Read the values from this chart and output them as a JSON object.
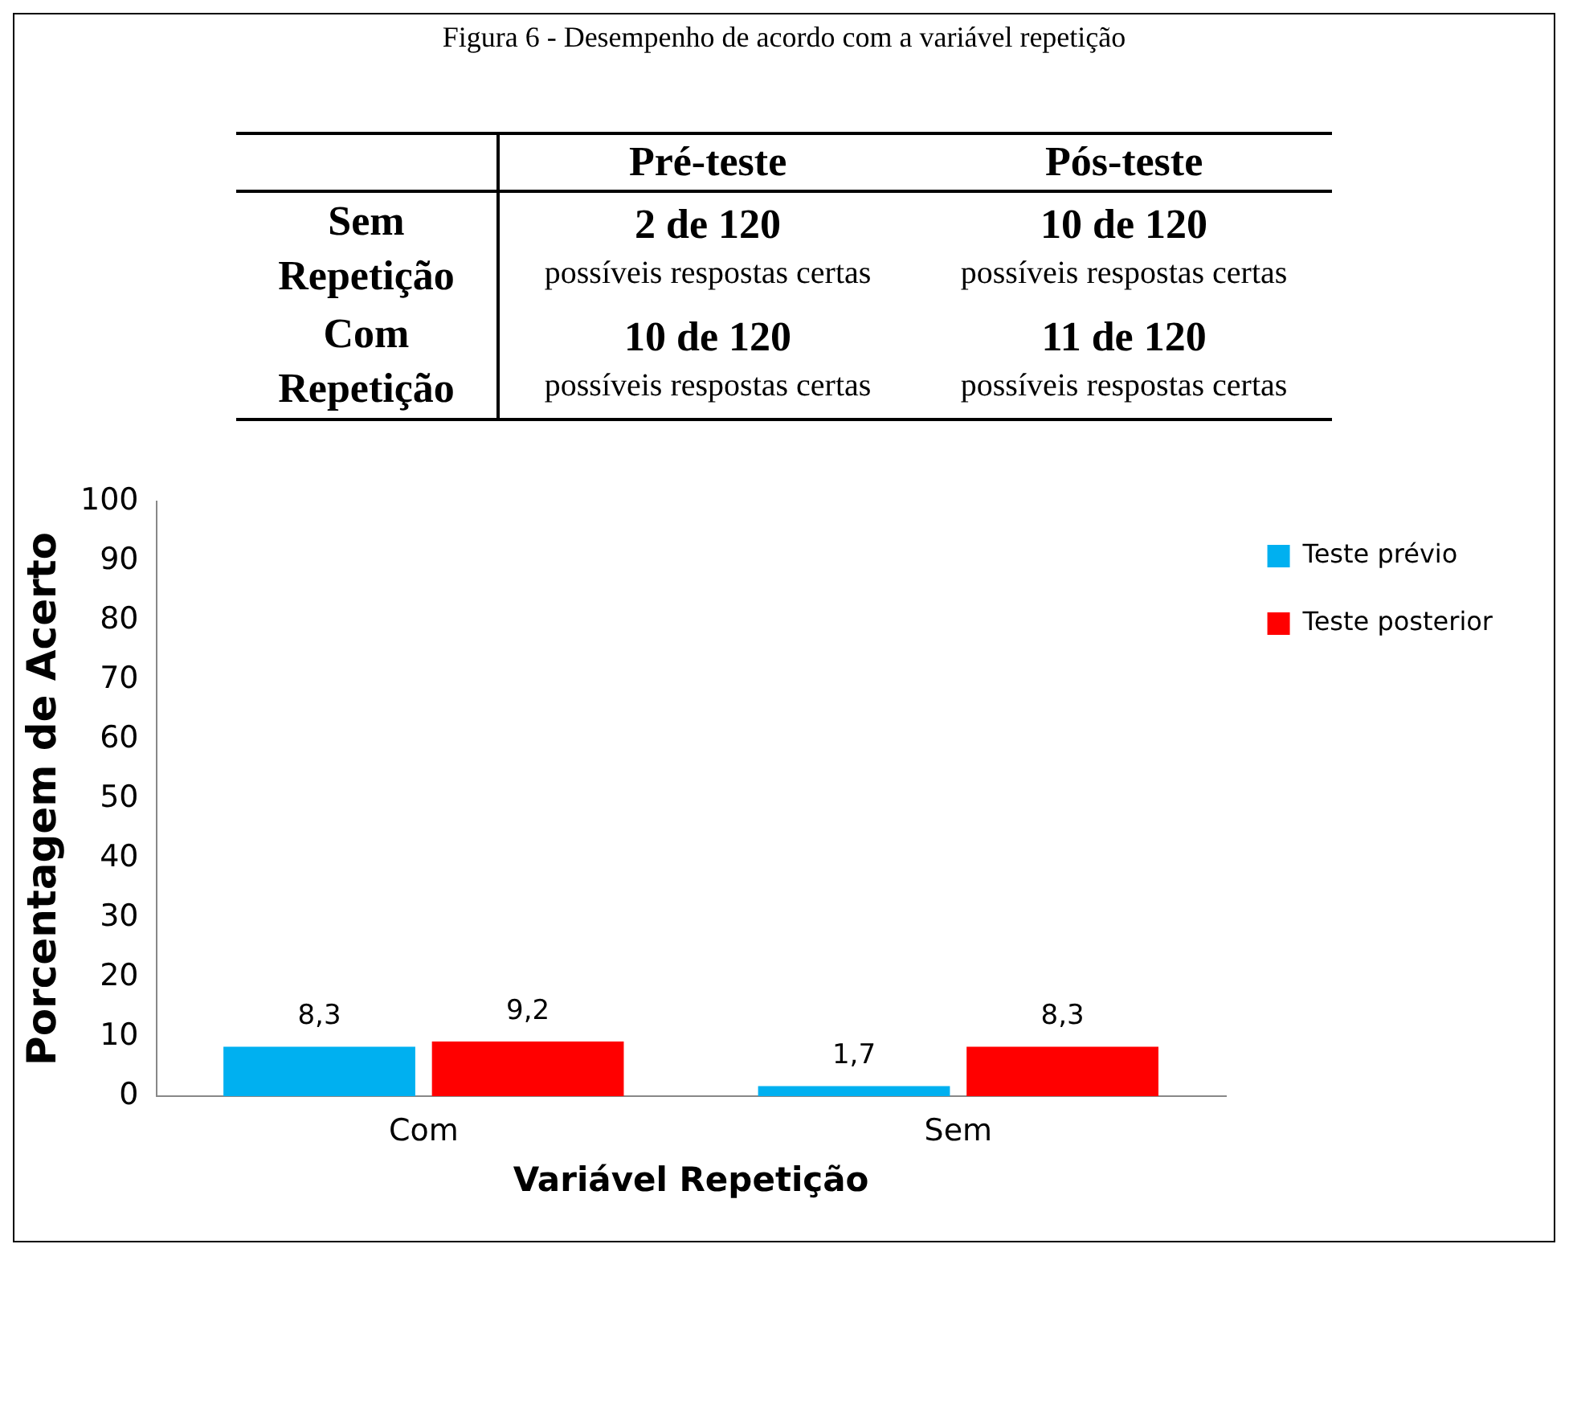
{
  "chart_data": [
    {
      "type": "other",
      "title": "Figura 6 - Desempenho de acordo com a variável repetição",
      "categories": [
        "Pré-teste",
        "Pós-teste"
      ],
      "y_categories": [
        "Sem Repetição",
        "Com Repetição"
      ],
      "cell_labels": [
        [
          "2 de 120\npossíveis respostas certas",
          "10 de 120\npossíveis respostas certas"
        ],
        [
          "10 de 120\npossíveis respostas certas",
          "11 de 120\npossíveis respostas certas"
        ]
      ]
    },
    {
      "type": "bar",
      "categories": [
        "Com",
        "Sem"
      ],
      "xlabel": "Variável Repetição",
      "ylabel": "Porcentagem de Acerto",
      "series": [
        {
          "name": "Teste prévio",
          "color": "#00b0f0",
          "values": [
            8.3,
            1.7
          ],
          "value_labels": [
            "8,3",
            "1,7"
          ]
        },
        {
          "name": "Teste posterior",
          "color": "#ff0000",
          "values": [
            9.2,
            8.3
          ],
          "value_labels": [
            "9,2",
            "8,3"
          ]
        }
      ],
      "ylim": [
        0,
        100
      ],
      "yticks": [
        0,
        10,
        20,
        30,
        40,
        50,
        60,
        70,
        80,
        90,
        100
      ],
      "grid": false,
      "legend": "top right"
    }
  ]
}
